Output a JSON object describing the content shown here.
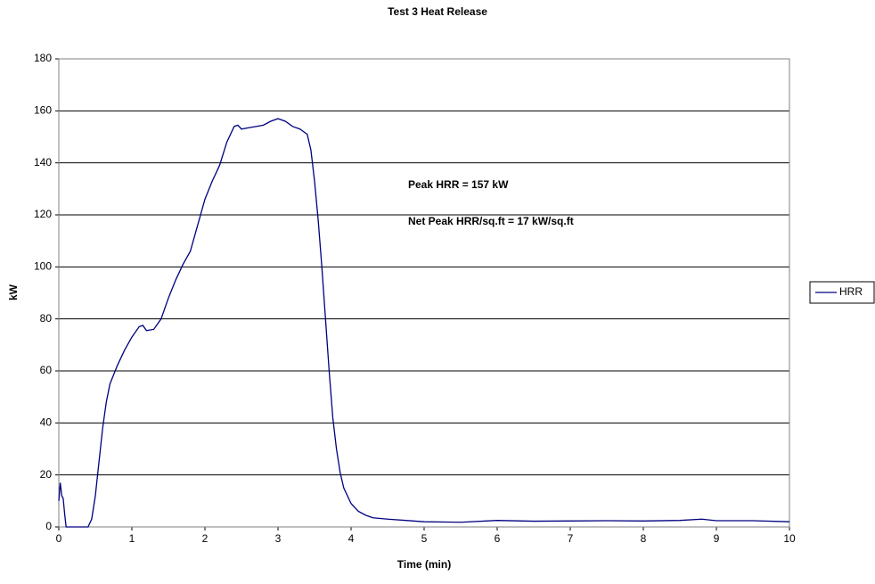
{
  "chart_data": {
    "type": "line",
    "title": "Test 3 Heat Release",
    "x_label": "Time (min)",
    "y_label": "kW",
    "annotations": [
      "Peak HRR = 157 kW",
      "Net Peak HRR/sq.ft = 17 kW/sq.ft"
    ],
    "x": [
      0,
      0.02,
      0.04,
      0.06,
      0.08,
      0.1,
      0.2,
      0.3,
      0.4,
      0.45,
      0.5,
      0.55,
      0.6,
      0.65,
      0.7,
      0.8,
      0.9,
      1.0,
      1.1,
      1.15,
      1.2,
      1.3,
      1.4,
      1.5,
      1.6,
      1.7,
      1.8,
      1.9,
      2.0,
      2.1,
      2.2,
      2.3,
      2.4,
      2.45,
      2.5,
      2.6,
      2.7,
      2.8,
      2.9,
      3.0,
      3.1,
      3.2,
      3.3,
      3.4,
      3.45,
      3.5,
      3.55,
      3.6,
      3.65,
      3.7,
      3.75,
      3.8,
      3.85,
      3.9,
      4.0,
      4.1,
      4.2,
      4.3,
      4.5,
      4.75,
      5,
      5.5,
      6,
      6.5,
      7,
      7.5,
      8,
      8.5,
      8.8,
      9,
      9.5,
      10
    ],
    "series": [
      {
        "name": "HRR",
        "color": "#000080",
        "values": [
          10,
          17,
          12,
          11,
          5,
          0,
          0,
          0,
          0,
          3,
          12,
          25,
          38,
          48,
          55,
          62,
          68,
          73,
          77,
          77.5,
          75.5,
          76,
          80,
          88,
          95,
          101,
          106,
          116,
          126,
          133,
          139,
          148,
          154,
          154.5,
          153,
          153.5,
          154,
          154.5,
          156,
          157,
          156,
          154,
          153,
          151,
          145,
          133,
          118,
          100,
          80,
          60,
          42,
          30,
          21,
          15,
          9,
          6,
          4.5,
          3.5,
          3,
          2.5,
          2,
          1.8,
          2.5,
          2.2,
          2.3,
          2.4,
          2.3,
          2.5,
          3,
          2.4,
          2.4,
          2
        ]
      }
    ],
    "xlim": [
      0,
      10
    ],
    "xticks": [
      0,
      1,
      2,
      3,
      4,
      5,
      6,
      7,
      8,
      9,
      10
    ],
    "ylim": [
      0,
      180
    ],
    "yticks": [
      0,
      20,
      40,
      60,
      80,
      100,
      120,
      140,
      160,
      180
    ],
    "grid": true,
    "legend": "right"
  }
}
